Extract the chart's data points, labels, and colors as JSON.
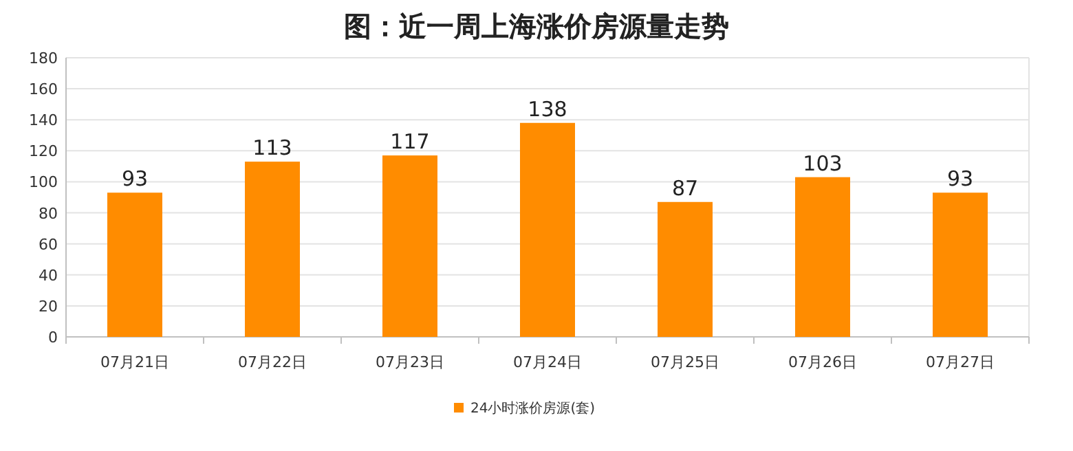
{
  "chart_data": {
    "type": "bar",
    "title": "图：近一周上海涨价房源量走势",
    "categories": [
      "07月21日",
      "07月22日",
      "07月23日",
      "07月24日",
      "07月25日",
      "07月26日",
      "07月27日"
    ],
    "series": [
      {
        "name": "24小时涨价房源(套)",
        "color": "#ff8c00",
        "values": [
          93,
          113,
          117,
          138,
          87,
          103,
          93
        ]
      }
    ],
    "ylim": [
      0,
      180
    ],
    "yticks": [
      0,
      20,
      40,
      60,
      80,
      100,
      120,
      140,
      160,
      180
    ],
    "grid": "y",
    "legend": "bottom",
    "data_labels": true
  }
}
